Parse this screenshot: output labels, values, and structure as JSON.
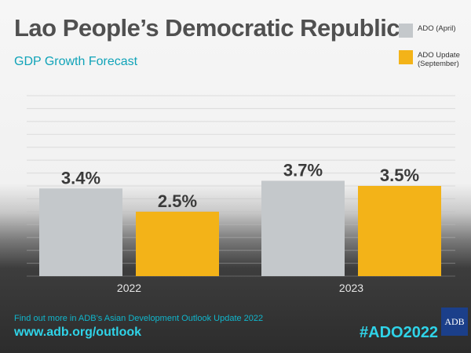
{
  "header": {
    "title": "Lao People’s Democratic Republic",
    "subtitle": "GDP Growth Forecast"
  },
  "legend": {
    "items": [
      {
        "label": "ADO (April)",
        "color": "#c4c8cb"
      },
      {
        "label": "ADO Update\n(September)",
        "color": "#f3b318"
      }
    ]
  },
  "chart_data": {
    "type": "bar",
    "categories": [
      "2022",
      "2023"
    ],
    "series": [
      {
        "name": "ADO (April)",
        "values": [
          3.4,
          3.7
        ],
        "labels": [
          "3.4%",
          "3.7%"
        ],
        "color": "#c4c8cb"
      },
      {
        "name": "ADO Update (September)",
        "values": [
          2.5,
          3.5
        ],
        "labels": [
          "2.5%",
          "3.5%"
        ],
        "color": "#f3b318"
      }
    ],
    "title": "GDP Growth Forecast",
    "xlabel": "",
    "ylabel": "",
    "ylim": [
      0,
      7
    ],
    "grid": true,
    "legend_position": "top-right"
  },
  "footer": {
    "info": "Find out more in ADB’s Asian Development Outlook Update 2022",
    "url": "www.adb.org/outlook",
    "hashtag": "#ADO2022",
    "logo_text": "ADB"
  }
}
